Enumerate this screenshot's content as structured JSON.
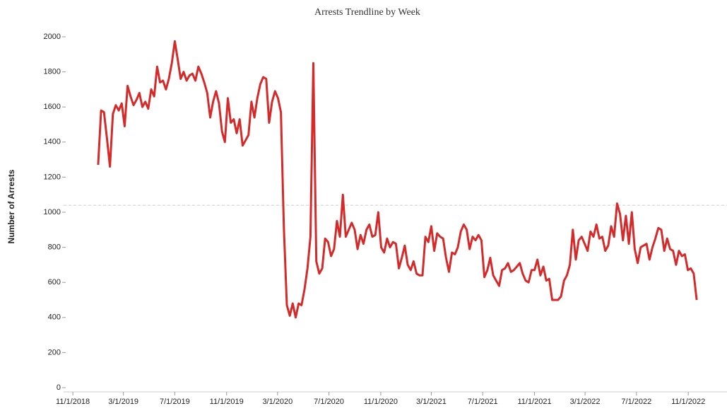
{
  "chart_data": {
    "type": "line",
    "title": "Arrests Trendline by Week",
    "y_label": "Number of Arrests",
    "x": [
      "2018-12-31",
      "2019-01-07",
      "2019-01-14",
      "2019-01-21",
      "2019-01-28",
      "2019-02-04",
      "2019-02-11",
      "2019-02-18",
      "2019-02-25",
      "2019-03-04",
      "2019-03-11",
      "2019-03-18",
      "2019-03-25",
      "2019-04-01",
      "2019-04-08",
      "2019-04-15",
      "2019-04-22",
      "2019-04-29",
      "2019-05-06",
      "2019-05-13",
      "2019-05-20",
      "2019-05-27",
      "2019-06-03",
      "2019-06-10",
      "2019-06-17",
      "2019-06-24",
      "2019-07-01",
      "2019-07-08",
      "2019-07-15",
      "2019-07-22",
      "2019-07-29",
      "2019-08-05",
      "2019-08-12",
      "2019-08-19",
      "2019-08-26",
      "2019-09-02",
      "2019-09-09",
      "2019-09-16",
      "2019-09-23",
      "2019-09-30",
      "2019-10-07",
      "2019-10-14",
      "2019-10-21",
      "2019-10-28",
      "2019-11-04",
      "2019-11-11",
      "2019-11-18",
      "2019-11-25",
      "2019-12-02",
      "2019-12-09",
      "2019-12-16",
      "2019-12-23",
      "2019-12-30",
      "2020-01-06",
      "2020-01-13",
      "2020-01-20",
      "2020-01-27",
      "2020-02-03",
      "2020-02-10",
      "2020-02-17",
      "2020-02-24",
      "2020-03-02",
      "2020-03-09",
      "2020-03-16",
      "2020-03-23",
      "2020-03-30",
      "2020-04-06",
      "2020-04-13",
      "2020-04-20",
      "2020-04-27",
      "2020-05-04",
      "2020-05-11",
      "2020-05-18",
      "2020-05-25",
      "2020-06-01",
      "2020-06-08",
      "2020-06-15",
      "2020-06-22",
      "2020-06-29",
      "2020-07-06",
      "2020-07-13",
      "2020-07-20",
      "2020-07-27",
      "2020-08-03",
      "2020-08-10",
      "2020-08-17",
      "2020-08-24",
      "2020-08-31",
      "2020-09-07",
      "2020-09-14",
      "2020-09-21",
      "2020-09-28",
      "2020-10-05",
      "2020-10-12",
      "2020-10-19",
      "2020-10-26",
      "2020-11-02",
      "2020-11-09",
      "2020-11-16",
      "2020-11-23",
      "2020-11-30",
      "2020-12-07",
      "2020-12-14",
      "2020-12-21",
      "2020-12-28",
      "2021-01-04",
      "2021-01-11",
      "2021-01-18",
      "2021-01-25",
      "2021-02-01",
      "2021-02-08",
      "2021-02-15",
      "2021-02-22",
      "2021-03-01",
      "2021-03-08",
      "2021-03-15",
      "2021-03-22",
      "2021-03-29",
      "2021-04-05",
      "2021-04-12",
      "2021-04-19",
      "2021-04-26",
      "2021-05-03",
      "2021-05-10",
      "2021-05-17",
      "2021-05-24",
      "2021-05-31",
      "2021-06-07",
      "2021-06-14",
      "2021-06-21",
      "2021-06-28",
      "2021-07-05",
      "2021-07-12",
      "2021-07-19",
      "2021-07-26",
      "2021-08-02",
      "2021-08-09",
      "2021-08-16",
      "2021-08-23",
      "2021-08-30",
      "2021-09-06",
      "2021-09-13",
      "2021-09-20",
      "2021-09-27",
      "2021-10-04",
      "2021-10-11",
      "2021-10-18",
      "2021-10-25",
      "2021-11-01",
      "2021-11-08",
      "2021-11-15",
      "2021-11-22",
      "2021-11-29",
      "2021-12-06",
      "2021-12-13",
      "2021-12-20",
      "2021-12-27",
      "2022-01-03",
      "2022-01-10",
      "2022-01-17",
      "2022-01-24",
      "2022-01-31",
      "2022-02-07",
      "2022-02-14",
      "2022-02-21",
      "2022-02-28",
      "2022-03-07",
      "2022-03-14",
      "2022-03-21",
      "2022-03-28",
      "2022-04-04",
      "2022-04-11",
      "2022-04-18",
      "2022-04-25",
      "2022-05-02",
      "2022-05-09",
      "2022-05-16",
      "2022-05-23",
      "2022-05-30",
      "2022-06-06",
      "2022-06-13",
      "2022-06-20",
      "2022-06-27",
      "2022-07-04",
      "2022-07-11",
      "2022-07-18",
      "2022-07-25",
      "2022-08-01",
      "2022-08-08",
      "2022-08-15",
      "2022-08-22",
      "2022-08-29",
      "2022-09-05",
      "2022-09-12",
      "2022-09-19",
      "2022-09-26",
      "2022-10-03",
      "2022-10-10",
      "2022-10-17",
      "2022-10-24",
      "2022-10-31",
      "2022-11-07",
      "2022-11-14",
      "2022-11-21"
    ],
    "series": [
      {
        "color": "#d62a2a",
        "values": [
          1270,
          1580,
          1570,
          1420,
          1260,
          1560,
          1610,
          1580,
          1620,
          1490,
          1720,
          1660,
          1610,
          1640,
          1680,
          1600,
          1630,
          1590,
          1700,
          1660,
          1830,
          1740,
          1750,
          1700,
          1760,
          1850,
          1975,
          1870,
          1760,
          1800,
          1750,
          1780,
          1790,
          1750,
          1830,
          1790,
          1740,
          1680,
          1540,
          1630,
          1690,
          1620,
          1460,
          1400,
          1650,
          1510,
          1530,
          1450,
          1530,
          1380,
          1410,
          1440,
          1630,
          1540,
          1650,
          1730,
          1770,
          1760,
          1510,
          1630,
          1690,
          1650,
          1570,
          910,
          470,
          410,
          480,
          400,
          480,
          470,
          560,
          680,
          860,
          1850,
          720,
          650,
          680,
          850,
          830,
          750,
          790,
          950,
          860,
          1100,
          860,
          900,
          940,
          900,
          790,
          870,
          820,
          900,
          930,
          860,
          870,
          1000,
          800,
          770,
          850,
          800,
          830,
          820,
          680,
          740,
          810,
          700,
          670,
          720,
          650,
          640,
          640,
          860,
          830,
          920,
          780,
          880,
          860,
          850,
          740,
          660,
          770,
          760,
          800,
          890,
          930,
          900,
          790,
          860,
          840,
          870,
          840,
          630,
          670,
          740,
          640,
          610,
          580,
          670,
          680,
          710,
          660,
          670,
          690,
          710,
          650,
          610,
          600,
          670,
          670,
          730,
          640,
          690,
          610,
          620,
          500,
          500,
          500,
          520,
          610,
          640,
          700,
          900,
          730,
          840,
          860,
          820,
          780,
          890,
          860,
          930,
          850,
          860,
          780,
          810,
          920,
          860,
          1050,
          990,
          840,
          980,
          820,
          1000,
          790,
          710,
          800,
          810,
          820,
          730,
          800,
          850,
          910,
          900,
          780,
          850,
          790,
          780,
          700,
          780,
          750,
          760,
          670,
          680,
          650,
          500
        ]
      }
    ],
    "reference_line": 1040,
    "xlim": [
      "2018-10-10",
      "2023-02-01"
    ],
    "xticks": [
      {
        "value": "2018-11-01",
        "label": "11/1/2018"
      },
      {
        "value": "2019-03-01",
        "label": "3/1/2019"
      },
      {
        "value": "2019-07-01",
        "label": "7/1/2019"
      },
      {
        "value": "2019-11-01",
        "label": "11/1/2019"
      },
      {
        "value": "2020-03-01",
        "label": "3/1/2020"
      },
      {
        "value": "2020-07-01",
        "label": "7/1/2020"
      },
      {
        "value": "2020-11-01",
        "label": "11/1/2020"
      },
      {
        "value": "2021-03-01",
        "label": "3/1/2021"
      },
      {
        "value": "2021-07-01",
        "label": "7/1/2021"
      },
      {
        "value": "2021-11-01",
        "label": "11/1/2021"
      },
      {
        "value": "2022-03-01",
        "label": "3/1/2022"
      },
      {
        "value": "2022-07-01",
        "label": "7/1/2022"
      },
      {
        "value": "2022-11-01",
        "label": "11/1/2022"
      }
    ],
    "ylim": [
      0,
      2000
    ],
    "yticks": [
      0,
      200,
      400,
      600,
      800,
      1000,
      1200,
      1400,
      1600,
      1800,
      2000
    ]
  }
}
